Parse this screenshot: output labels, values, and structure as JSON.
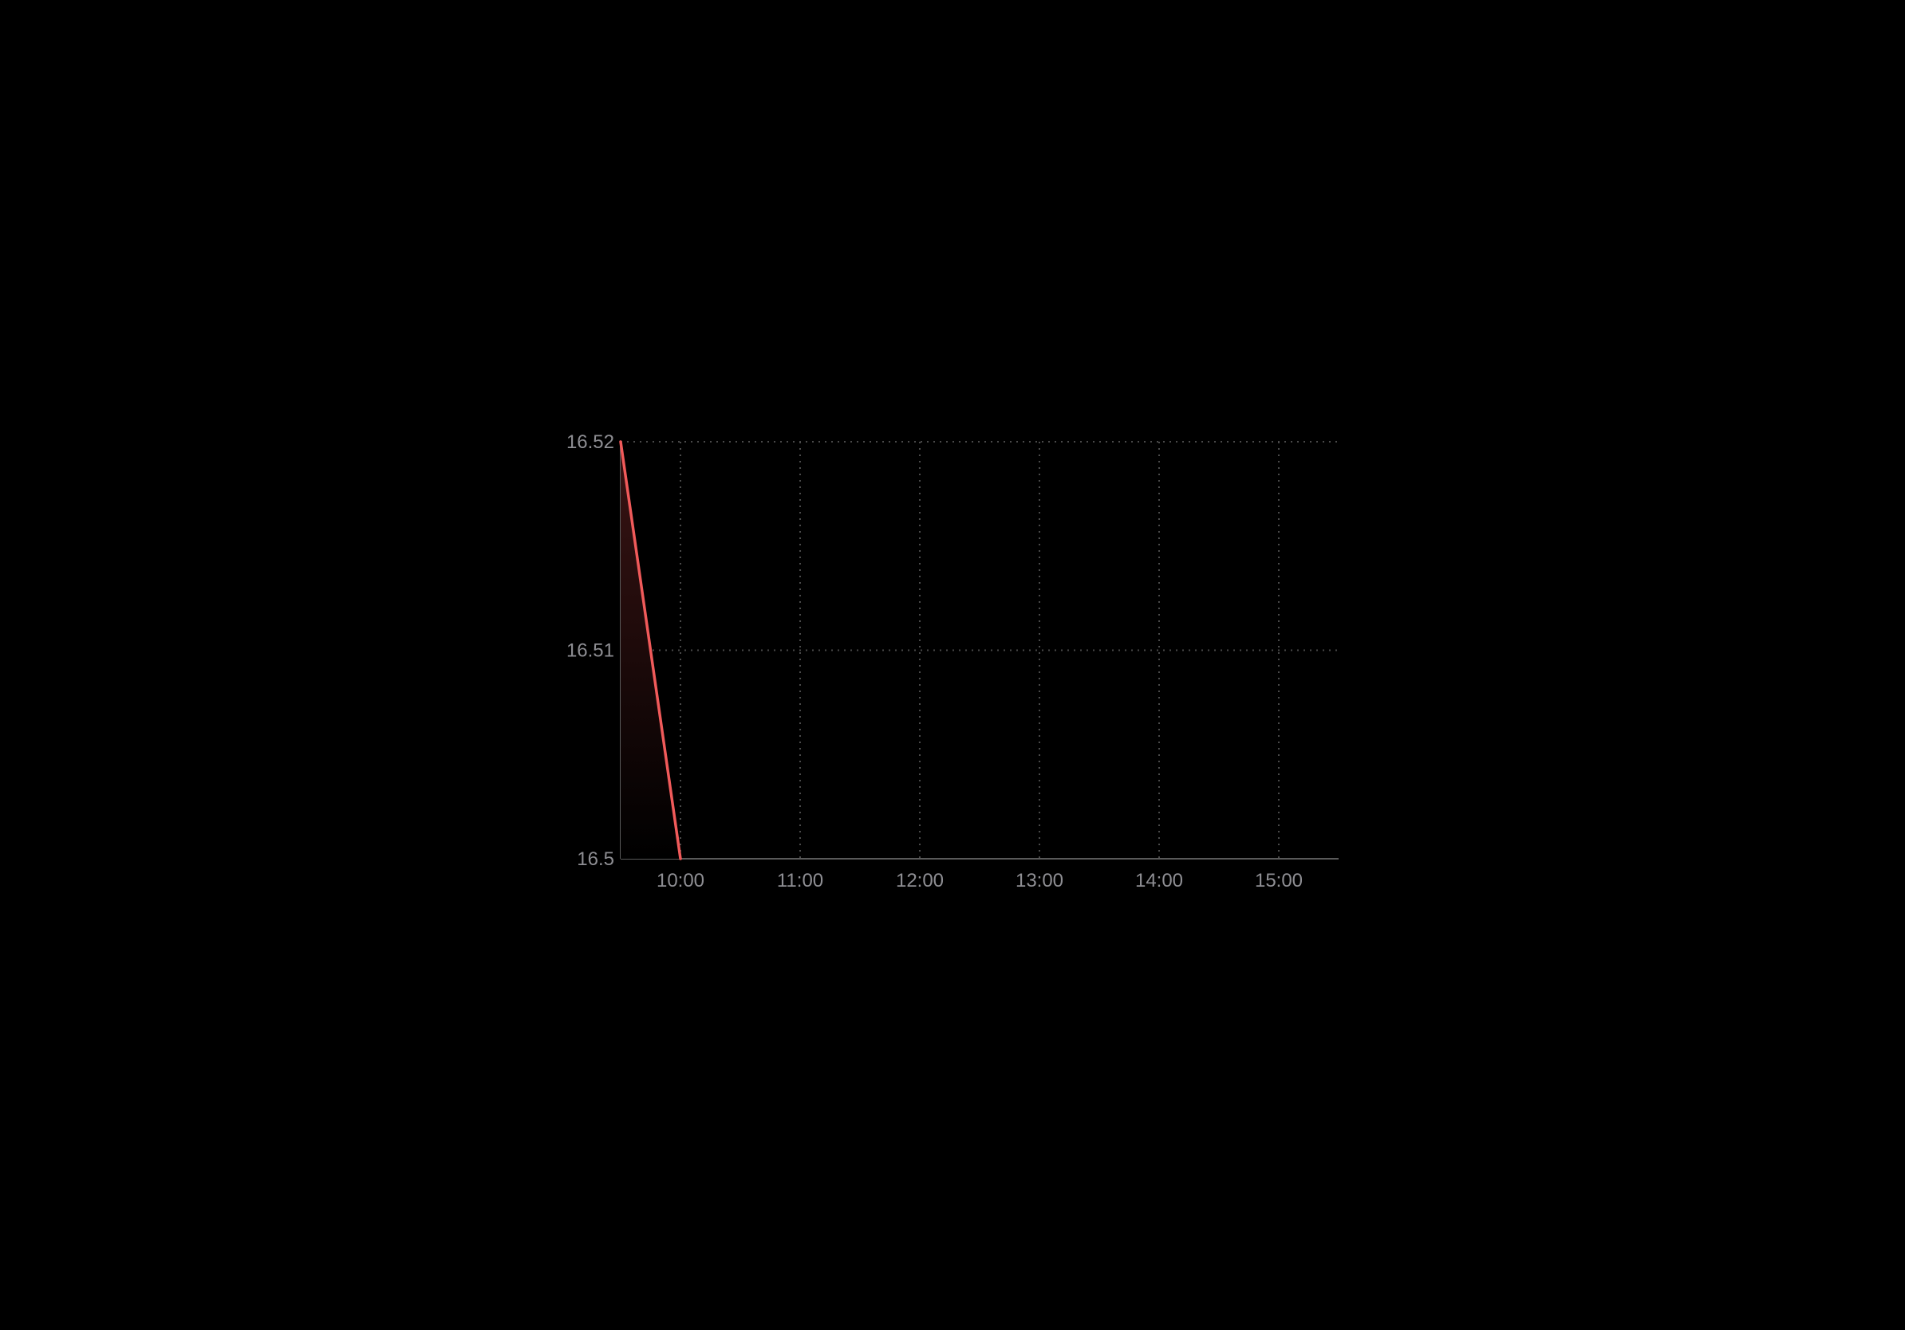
{
  "chart_data": {
    "type": "area",
    "title": "",
    "xlabel": "",
    "ylabel": "",
    "x_ticks": [
      "10:00",
      "11:00",
      "12:00",
      "13:00",
      "14:00",
      "15:00"
    ],
    "y_ticks": [
      "16.5",
      "16.51",
      "16.52"
    ],
    "xlim": [
      "09:30",
      "15:30"
    ],
    "ylim": [
      16.5,
      16.52
    ],
    "grid": true,
    "legend": "none",
    "series": [
      {
        "points": [
          {
            "x": "09:30",
            "y": 16.52
          },
          {
            "x": "10:00",
            "y": 16.5
          }
        ]
      }
    ],
    "colors": {
      "background": "#000000",
      "line": "#f05a5a",
      "fill_top": "#3a1414",
      "grid": "#4a4a4a",
      "axis": "#5a5a5a",
      "tick_text": "#8e8e93"
    }
  }
}
